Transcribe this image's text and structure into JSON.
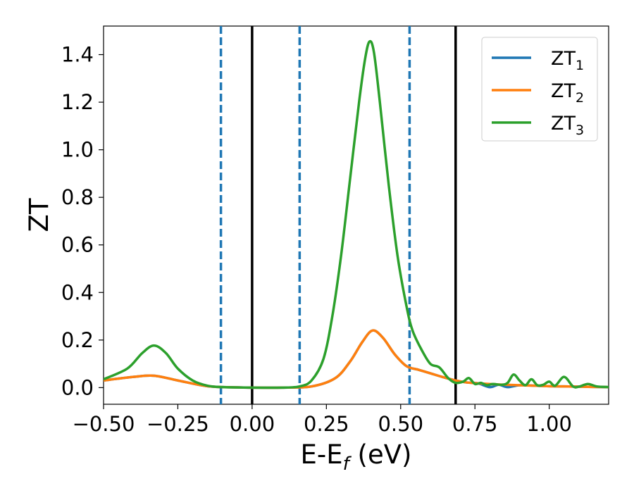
{
  "chart_data": {
    "type": "line",
    "xlabel": {
      "main": "E-E",
      "sub": "f",
      "unit": " (eV)"
    },
    "ylabel": "ZT",
    "xlim": [
      -0.5,
      1.2
    ],
    "ylim": [
      -0.07,
      1.52
    ],
    "xticks": [
      -0.5,
      -0.25,
      0.0,
      0.25,
      0.5,
      0.75,
      1.0
    ],
    "xtick_labels": [
      "−0.50",
      "−0.25",
      "0.00",
      "0.25",
      "0.50",
      "0.75",
      "1.00"
    ],
    "yticks": [
      0.0,
      0.2,
      0.4,
      0.6,
      0.8,
      1.0,
      1.2,
      1.4
    ],
    "ytick_labels": [
      "0.0",
      "0.2",
      "0.4",
      "0.6",
      "0.8",
      "1.0",
      "1.2",
      "1.4"
    ],
    "grid": false,
    "legend_position": "top-right",
    "vlines": [
      {
        "x": -0.105,
        "style": "dashed",
        "color": "#1f77b4"
      },
      {
        "x": 0.0,
        "style": "solid",
        "color": "#000000"
      },
      {
        "x": 0.16,
        "style": "dashed",
        "color": "#1f77b4"
      },
      {
        "x": 0.53,
        "style": "dashed",
        "color": "#1f77b4"
      },
      {
        "x": 0.685,
        "style": "solid",
        "color": "#000000"
      }
    ],
    "series": [
      {
        "name": "ZT",
        "name_sub": "1",
        "color": "#1f77b4",
        "points": [
          [
            -0.5,
            0.03
          ],
          [
            -0.4,
            0.045
          ],
          [
            -0.33,
            0.05
          ],
          [
            -0.25,
            0.03
          ],
          [
            -0.15,
            0.006
          ],
          [
            -0.05,
            0.001
          ],
          [
            0.0,
            0.0
          ],
          [
            0.1,
            0.0
          ],
          [
            0.2,
            0.005
          ],
          [
            0.28,
            0.04
          ],
          [
            0.33,
            0.11
          ],
          [
            0.37,
            0.19
          ],
          [
            0.405,
            0.24
          ],
          [
            0.44,
            0.21
          ],
          [
            0.48,
            0.14
          ],
          [
            0.52,
            0.09
          ],
          [
            0.56,
            0.075
          ],
          [
            0.6,
            0.06
          ],
          [
            0.64,
            0.045
          ],
          [
            0.685,
            0.03
          ],
          [
            0.72,
            0.022
          ],
          [
            0.76,
            0.018
          ],
          [
            0.8,
            0.002
          ],
          [
            0.83,
            0.012
          ],
          [
            0.86,
            0.002
          ],
          [
            0.9,
            0.01
          ],
          [
            0.95,
            0.008
          ],
          [
            1.0,
            0.006
          ],
          [
            1.05,
            0.005
          ],
          [
            1.1,
            0.004
          ],
          [
            1.2,
            0.002
          ]
        ]
      },
      {
        "name": "ZT",
        "name_sub": "2",
        "color": "#ff7f0e",
        "points": [
          [
            -0.5,
            0.03
          ],
          [
            -0.4,
            0.045
          ],
          [
            -0.33,
            0.05
          ],
          [
            -0.25,
            0.03
          ],
          [
            -0.15,
            0.006
          ],
          [
            -0.05,
            0.001
          ],
          [
            0.0,
            0.0
          ],
          [
            0.1,
            0.0
          ],
          [
            0.2,
            0.005
          ],
          [
            0.28,
            0.04
          ],
          [
            0.33,
            0.11
          ],
          [
            0.37,
            0.19
          ],
          [
            0.405,
            0.24
          ],
          [
            0.44,
            0.21
          ],
          [
            0.48,
            0.14
          ],
          [
            0.52,
            0.09
          ],
          [
            0.56,
            0.075
          ],
          [
            0.6,
            0.06
          ],
          [
            0.64,
            0.045
          ],
          [
            0.685,
            0.03
          ],
          [
            0.72,
            0.022
          ],
          [
            0.76,
            0.018
          ],
          [
            0.8,
            0.015
          ],
          [
            0.85,
            0.012
          ],
          [
            0.9,
            0.01
          ],
          [
            0.95,
            0.008
          ],
          [
            1.0,
            0.006
          ],
          [
            1.05,
            0.005
          ],
          [
            1.1,
            0.004
          ],
          [
            1.2,
            0.002
          ]
        ]
      },
      {
        "name": "ZT",
        "name_sub": "3",
        "color": "#2ca02c",
        "points": [
          [
            -0.5,
            0.035
          ],
          [
            -0.42,
            0.08
          ],
          [
            -0.37,
            0.145
          ],
          [
            -0.33,
            0.177
          ],
          [
            -0.29,
            0.145
          ],
          [
            -0.25,
            0.08
          ],
          [
            -0.2,
            0.03
          ],
          [
            -0.15,
            0.008
          ],
          [
            -0.1,
            0.002
          ],
          [
            0.0,
            0.0
          ],
          [
            0.1,
            0.0
          ],
          [
            0.16,
            0.005
          ],
          [
            0.2,
            0.03
          ],
          [
            0.24,
            0.12
          ],
          [
            0.27,
            0.3
          ],
          [
            0.3,
            0.56
          ],
          [
            0.33,
            0.88
          ],
          [
            0.36,
            1.2
          ],
          [
            0.38,
            1.38
          ],
          [
            0.395,
            1.455
          ],
          [
            0.41,
            1.41
          ],
          [
            0.43,
            1.2
          ],
          [
            0.46,
            0.85
          ],
          [
            0.49,
            0.55
          ],
          [
            0.52,
            0.34
          ],
          [
            0.54,
            0.24
          ],
          [
            0.57,
            0.16
          ],
          [
            0.6,
            0.1
          ],
          [
            0.63,
            0.085
          ],
          [
            0.66,
            0.04
          ],
          [
            0.685,
            0.02
          ],
          [
            0.71,
            0.025
          ],
          [
            0.73,
            0.04
          ],
          [
            0.75,
            0.015
          ],
          [
            0.77,
            0.02
          ],
          [
            0.79,
            0.01
          ],
          [
            0.81,
            0.015
          ],
          [
            0.84,
            0.012
          ],
          [
            0.86,
            0.02
          ],
          [
            0.88,
            0.055
          ],
          [
            0.9,
            0.03
          ],
          [
            0.92,
            0.01
          ],
          [
            0.94,
            0.035
          ],
          [
            0.96,
            0.01
          ],
          [
            0.98,
            0.012
          ],
          [
            1.0,
            0.025
          ],
          [
            1.02,
            0.008
          ],
          [
            1.05,
            0.045
          ],
          [
            1.08,
            0.005
          ],
          [
            1.1,
            0.004
          ],
          [
            1.13,
            0.015
          ],
          [
            1.16,
            0.005
          ],
          [
            1.2,
            0.002
          ]
        ]
      }
    ]
  }
}
